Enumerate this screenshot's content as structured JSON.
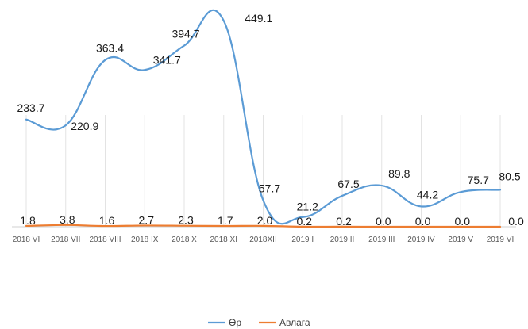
{
  "chart_data": {
    "type": "line",
    "title": "",
    "xlabel": "",
    "ylabel": "",
    "categories": [
      "2018 VI",
      "2018 VII",
      "2018 VIII",
      "2018 IX",
      "2018 X",
      "2018 XI",
      "2018XII",
      "2019 I",
      "2019 II",
      "2019 III",
      "2019 IV",
      "2019 V",
      "2019 VI"
    ],
    "ylim": [
      0,
      470
    ],
    "grid": "vertical-only",
    "legend": "bottom",
    "series": [
      {
        "name": "Өр",
        "color": "#5B9BD5",
        "values": [
          233.7,
          220.9,
          363.4,
          341.7,
          394.7,
          449.1,
          57.7,
          21.2,
          67.5,
          89.8,
          44.2,
          75.7,
          80.5
        ],
        "labels": [
          "233.7",
          "220.9",
          "363.4",
          "341.7",
          "394.7",
          "449.1",
          "57.7",
          "21.2",
          "67.5",
          "89.8",
          "44.2",
          "75.7",
          "80.5"
        ]
      },
      {
        "name": "Авлага",
        "color": "#ED7D31",
        "values": [
          1.8,
          3.8,
          1.6,
          2.7,
          2.3,
          1.7,
          2.0,
          0.2,
          0.2,
          0.0,
          0.0,
          0.0,
          0.0
        ],
        "labels": [
          "1.8",
          "3.8",
          "1.6",
          "2.7",
          "2.3",
          "1.7",
          "2.0",
          "0.2",
          "0.2",
          "0.0",
          "0.0",
          "0.0",
          "0.0"
        ]
      }
    ]
  }
}
